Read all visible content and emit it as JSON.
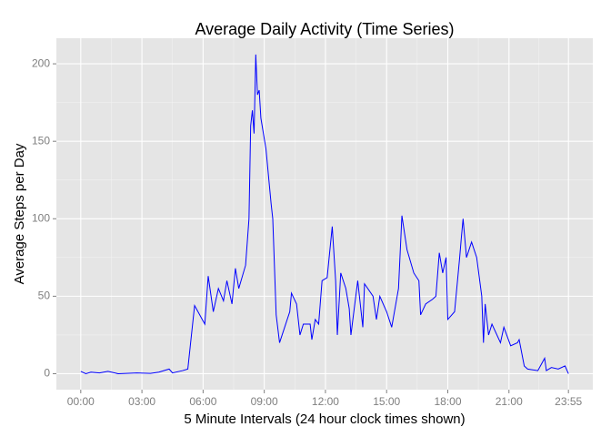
{
  "chart_data": {
    "type": "line",
    "title": "Average Daily Activity (Time Series)",
    "x_label": "5 Minute Intervals (24 hour clock times shown)",
    "y_label": "Average Steps per Day",
    "x": [
      0,
      15,
      30,
      55,
      80,
      110,
      165,
      205,
      230,
      260,
      270,
      300,
      315,
      335,
      365,
      375,
      390,
      405,
      420,
      430,
      445,
      455,
      465,
      485,
      495,
      500,
      505,
      510,
      515,
      520,
      525,
      530,
      545,
      560,
      565,
      575,
      585,
      600,
      615,
      620,
      635,
      645,
      655,
      675,
      680,
      690,
      700,
      710,
      725,
      740,
      750,
      755,
      765,
      780,
      790,
      795,
      815,
      820,
      830,
      835,
      860,
      870,
      880,
      900,
      915,
      935,
      945,
      960,
      980,
      995,
      1000,
      1015,
      1035,
      1045,
      1055,
      1065,
      1075,
      1080,
      1100,
      1115,
      1120,
      1125,
      1135,
      1150,
      1165,
      1180,
      1185,
      1190,
      1200,
      1210,
      1235,
      1245,
      1265,
      1285,
      1290,
      1305,
      1315,
      1345,
      1365,
      1370,
      1385,
      1405,
      1425,
      1435
    ],
    "series": [
      {
        "color": "#0000ff",
        "values": [
          1.5,
          0,
          1,
          0.5,
          1.5,
          0,
          0.5,
          0.2,
          1,
          3,
          0.5,
          2,
          3,
          44,
          32,
          63,
          40,
          55,
          47,
          60,
          45,
          68,
          55,
          70,
          100,
          160,
          170,
          155,
          206,
          180,
          183,
          165,
          145,
          110,
          100,
          38,
          20,
          30,
          40,
          52,
          45,
          25,
          32,
          32,
          22,
          35,
          32,
          60,
          62,
          95,
          60,
          25,
          65,
          55,
          42,
          25,
          60,
          50,
          30,
          58,
          50,
          35,
          50,
          40,
          30,
          55,
          102,
          80,
          65,
          60,
          38,
          45,
          48,
          50,
          78,
          65,
          75,
          35,
          40,
          75,
          88,
          100,
          75,
          85,
          75,
          50,
          20,
          45,
          25,
          32,
          20,
          30,
          18,
          20,
          22,
          5,
          3,
          2,
          10,
          2,
          4,
          3,
          5,
          0
        ]
      }
    ],
    "xlim": [
      -71.75,
      1506.75
    ],
    "xticks": [
      {
        "value": 0,
        "label": "00:00"
      },
      {
        "value": 180,
        "label": "03:00"
      },
      {
        "value": 360,
        "label": "06:00"
      },
      {
        "value": 540,
        "label": "09:00"
      },
      {
        "value": 720,
        "label": "12:00"
      },
      {
        "value": 900,
        "label": "15:00"
      },
      {
        "value": 1080,
        "label": "18:00"
      },
      {
        "value": 1260,
        "label": "21:00"
      },
      {
        "value": 1435,
        "label": "23:55"
      }
    ],
    "ylim": [
      -10.3,
      216.5
    ],
    "yticks": [
      0,
      50,
      100,
      150,
      200
    ],
    "grid": true
  }
}
